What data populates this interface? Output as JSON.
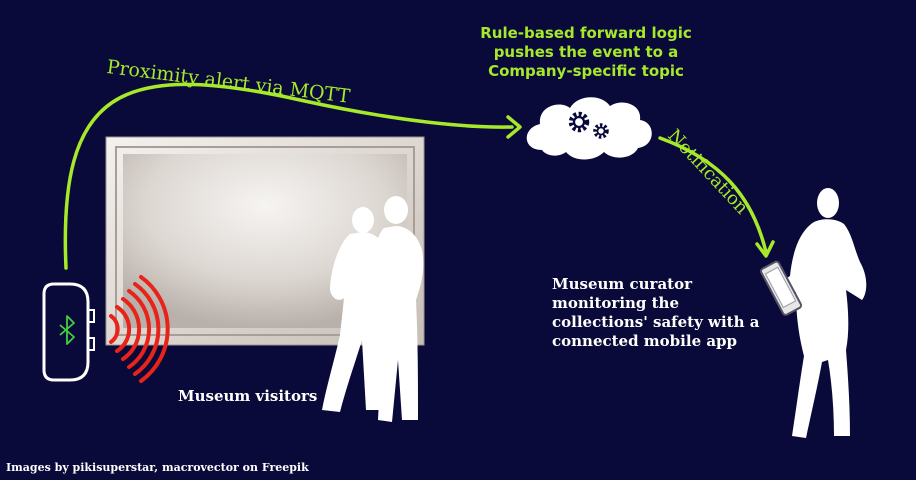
{
  "labels": {
    "proximity_alert": "Proximity alert via MQTT",
    "rule_logic": [
      "Rule-based forward logic",
      "pushes the event to a",
      "Company-specific topic"
    ],
    "notification": "Notification",
    "curator": [
      "Museum curator",
      "monitoring the",
      "collections' safety with a",
      "connected mobile app"
    ],
    "visitors": "Museum visitors",
    "credit": "Images by pikisuperstar, macrovector on Freepik"
  },
  "icons": {
    "beacon": "bluetooth-icon",
    "cloud": "gears-icon"
  },
  "colors": {
    "background": "#0a0a3a",
    "accent": "#a6e82a",
    "signal": "#e8231a",
    "silhouette": "#ffffff"
  }
}
